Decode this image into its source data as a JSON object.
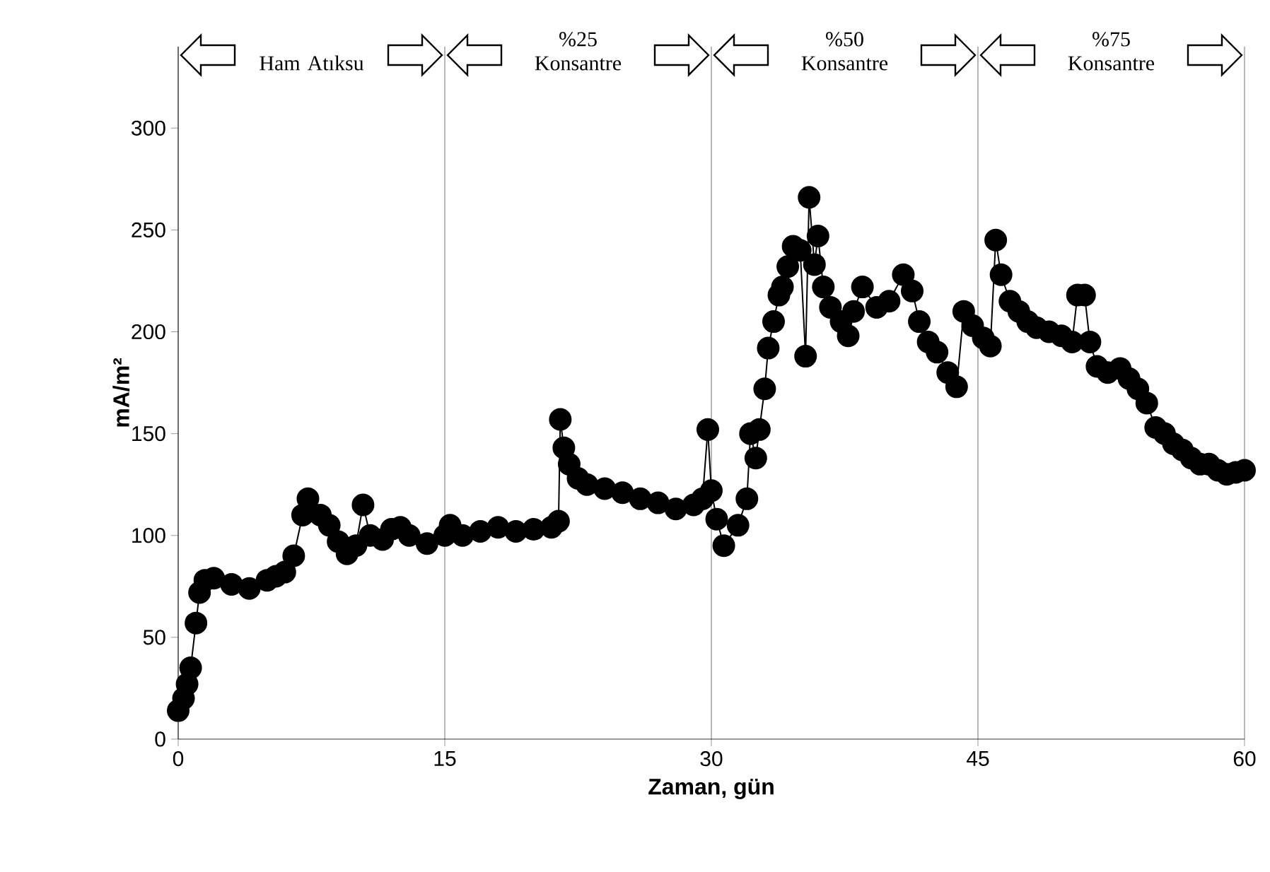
{
  "chart_data": {
    "type": "line",
    "xlabel": "Zaman, gün",
    "ylabel": "mA/m²",
    "marker": "circle",
    "color": "#000000",
    "xlim": [
      0,
      60
    ],
    "ylim": [
      0,
      340
    ],
    "xticks": [
      0,
      15,
      30,
      45,
      60
    ],
    "yticks": [
      0,
      50,
      100,
      150,
      200,
      250,
      300
    ],
    "grid": "x",
    "annotations": [
      "Ham Atıksu",
      "%25 Konsantre",
      "%50 Konsantre",
      "%75 Konsantre"
    ],
    "x": [
      0,
      0.3,
      0.5,
      0.7,
      1.0,
      1.2,
      1.5,
      2,
      3,
      4,
      5,
      5.5,
      6,
      6.5,
      7,
      7.3,
      8,
      8.5,
      9,
      9.5,
      10,
      10.4,
      10.8,
      11.5,
      12,
      12.5,
      13,
      14,
      15,
      15.3,
      16,
      17,
      18,
      19,
      20,
      21,
      21.4,
      21.5,
      21.7,
      22,
      22.5,
      23,
      24,
      25,
      26,
      27,
      28,
      29,
      29.5,
      29.8,
      30,
      30.3,
      30.7,
      31.5,
      32,
      32.2,
      32.5,
      32.7,
      33,
      33.2,
      33.5,
      33.8,
      34,
      34.3,
      34.6,
      35,
      35.3,
      35.5,
      35.8,
      36,
      36.3,
      36.7,
      37.3,
      37.7,
      38,
      38.5,
      39.3,
      40,
      40.8,
      41.3,
      41.7,
      42.2,
      42.7,
      43.3,
      43.8,
      44.2,
      44.7,
      45.3,
      45.7,
      46,
      46.3,
      46.8,
      47.3,
      47.8,
      48.3,
      49,
      49.7,
      50.3,
      50.6,
      51,
      51.3,
      51.7,
      52.3,
      53,
      53.5,
      54,
      54.5,
      55,
      55.5,
      56,
      56.5,
      57,
      57.5,
      58,
      58.5,
      59,
      59.5,
      60
    ],
    "values": [
      14,
      20,
      27,
      35,
      57,
      72,
      78,
      79,
      76,
      74,
      78,
      80,
      82,
      90,
      110,
      118,
      110,
      105,
      97,
      91,
      95,
      115,
      100,
      98,
      103,
      104,
      100,
      96,
      100,
      105,
      100,
      102,
      104,
      102,
      103,
      104,
      107,
      157,
      143,
      135,
      128,
      125,
      123,
      121,
      118,
      116,
      113,
      115,
      118,
      152,
      122,
      108,
      95,
      105,
      118,
      150,
      138,
      152,
      172,
      192,
      205,
      218,
      222,
      232,
      242,
      240,
      188,
      266,
      233,
      247,
      222,
      212,
      205,
      198,
      210,
      222,
      212,
      215,
      228,
      220,
      205,
      195,
      190,
      180,
      173,
      210,
      203,
      197,
      193,
      245,
      228,
      215,
      210,
      205,
      202,
      200,
      198,
      195,
      218,
      218,
      195,
      183,
      180,
      182,
      177,
      172,
      165,
      153,
      150,
      145,
      142,
      138,
      135,
      135,
      132,
      130,
      131,
      132
    ]
  }
}
